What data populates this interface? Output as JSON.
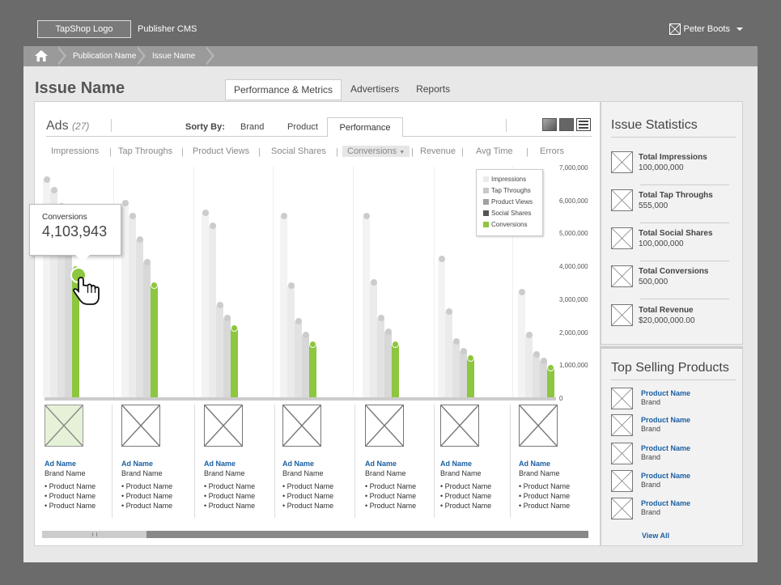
{
  "header": {
    "logo": "TapShop Logo",
    "app_title": "Publisher CMS",
    "user_name": "Peter Boots"
  },
  "breadcrumb": {
    "items": [
      "Publication Name",
      "Issue Name"
    ]
  },
  "page": {
    "title": "Issue Name",
    "tabs": [
      "Performance & Metrics",
      "Advertisers",
      "Reports"
    ],
    "active_tab": "Performance & Metrics"
  },
  "ads": {
    "label": "Ads",
    "count": "(27)",
    "sort_by_label": "Sorty By:",
    "sort_options": [
      "Brand",
      "Product",
      "Performance"
    ],
    "active_sort": "Performance",
    "metrics": [
      "Impressions",
      "Tap Throughs",
      "Product Views",
      "Social Shares",
      "Conversions",
      "Revenue",
      "Avg Time",
      "Errors"
    ],
    "active_metric": "Conversions"
  },
  "chart_data": {
    "type": "bar",
    "legend": [
      "Impressions",
      "Tap Throughs",
      "Product Views",
      "Social Shares",
      "Conversions"
    ],
    "legend_colors": [
      "#ebebeb",
      "#c8c8c8",
      "#a0a0a0",
      "#555555",
      "#8dc63f"
    ],
    "y_ticks": [
      "7,000,000",
      "6,000,000",
      "5,000,000",
      "4,000,000",
      "3,000,000",
      "2,000,000",
      "1,000,000",
      "0"
    ],
    "ylim": [
      0,
      7000000
    ],
    "groups": [
      {
        "values": [
          6600000,
          6300000,
          5800000,
          5000000,
          3900000
        ]
      },
      {
        "values": [
          5900000,
          5500000,
          4800000,
          4100000,
          3400000
        ]
      },
      {
        "values": [
          5600000,
          5200000,
          2800000,
          2400000,
          2100000
        ]
      },
      {
        "values": [
          5500000,
          3400000,
          2300000,
          1900000,
          1600000
        ]
      },
      {
        "values": [
          5500000,
          3500000,
          2400000,
          2000000,
          1600000
        ]
      },
      {
        "values": [
          4200000,
          2600000,
          1700000,
          1400000,
          1200000
        ]
      },
      {
        "values": [
          3200000,
          1900000,
          1300000,
          1100000,
          900000
        ]
      }
    ],
    "tooltip": {
      "label": "Conversions",
      "value": "4,103,943"
    }
  },
  "ad_cards": [
    {
      "ad_name": "Ad Name",
      "brand": "Brand Name",
      "products": [
        "Product Name",
        "Product Name",
        "Product Name"
      ]
    },
    {
      "ad_name": "Ad Name",
      "brand": "Brand Name",
      "products": [
        "Product Name",
        "Product Name",
        "Product Name"
      ]
    },
    {
      "ad_name": "Ad Name",
      "brand": "Brand Name",
      "products": [
        "Product Name",
        "Product Name",
        "Product Name"
      ]
    },
    {
      "ad_name": "Ad Name",
      "brand": "Brand Name",
      "products": [
        "Product Name",
        "Product Name",
        "Product Name"
      ]
    },
    {
      "ad_name": "Ad Name",
      "brand": "Brand Name",
      "products": [
        "Product Name",
        "Product Name",
        "Product Name"
      ]
    },
    {
      "ad_name": "Ad Name",
      "brand": "Brand Name",
      "products": [
        "Product Name",
        "Product Name",
        "Product Name"
      ]
    },
    {
      "ad_name": "Ad Name",
      "brand": "Brand Name",
      "products": [
        "Product Name",
        "Product Name",
        "Product Name"
      ]
    }
  ],
  "issue_statistics": {
    "title": "Issue Statistics",
    "stats": [
      {
        "label": "Total Impressions",
        "value": "100,000,000"
      },
      {
        "label": "Total Tap Throughs",
        "value": "555,000"
      },
      {
        "label": "Total Social Shares",
        "value": "100,000,000"
      },
      {
        "label": "Total Conversions",
        "value": "500,000"
      },
      {
        "label": "Total Revenue",
        "value": "$20,000,000.00"
      }
    ]
  },
  "top_selling": {
    "title": "Top Selling Products",
    "products": [
      {
        "name": "Product Name",
        "brand": "Brand"
      },
      {
        "name": "Product Name",
        "brand": "Brand"
      },
      {
        "name": "Product Name",
        "brand": "Brand"
      },
      {
        "name": "Product Name",
        "brand": "Brand"
      },
      {
        "name": "Product Name",
        "brand": "Brand"
      }
    ],
    "view_all": "View All"
  }
}
